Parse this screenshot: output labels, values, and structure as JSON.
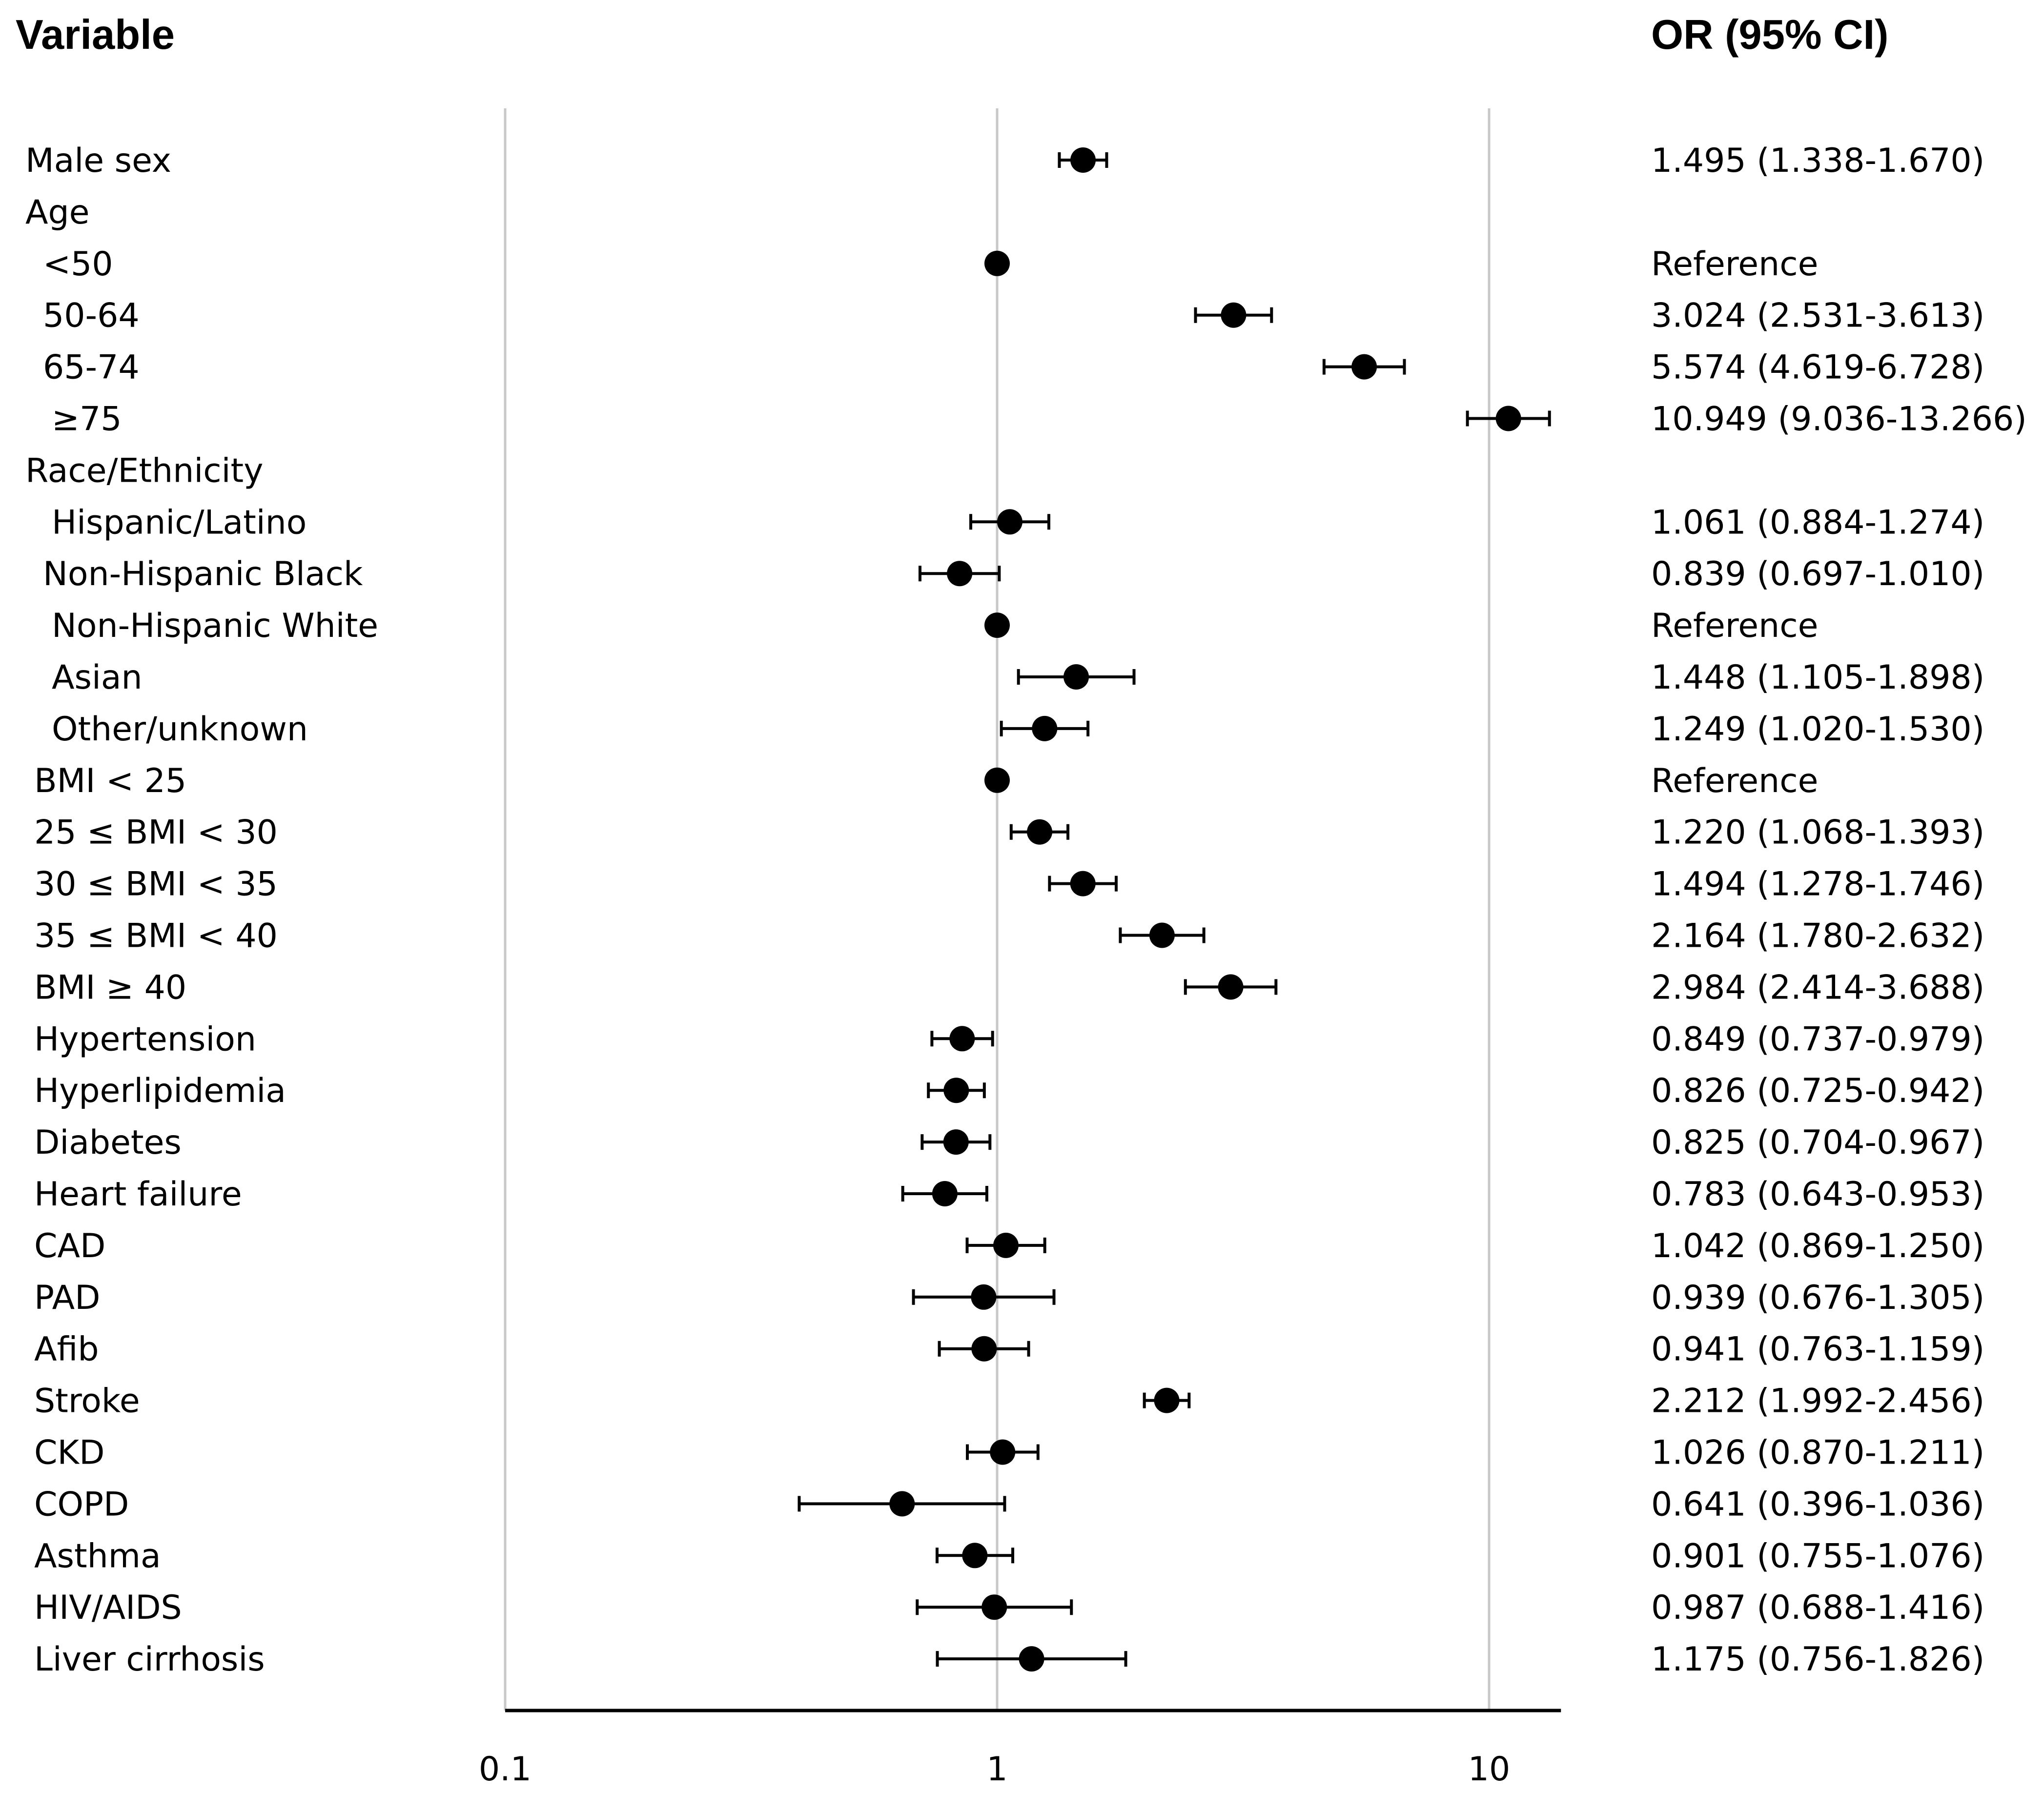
{
  "chart_data": {
    "type": "forest",
    "headers": {
      "left": "Variable",
      "right": "OR (95% CI)"
    },
    "x_axis": {
      "scale": "log",
      "range": [
        0.1,
        14
      ],
      "ticks": [
        0.1,
        1,
        10
      ],
      "tick_labels": [
        "0.1",
        "1",
        "10"
      ],
      "gridlines": [
        0.1,
        1,
        10
      ]
    },
    "rows": [
      {
        "label": "Male sex",
        "indent": 0,
        "or": 1.495,
        "lo": 1.338,
        "hi": 1.67,
        "ci_text": "1.495 (1.338-1.670)"
      },
      {
        "label": "Age",
        "indent": 0,
        "or": null,
        "lo": null,
        "hi": null,
        "ci_text": ""
      },
      {
        "label": "<50",
        "indent": 2,
        "or": 1,
        "lo": null,
        "hi": null,
        "ci_text": "Reference"
      },
      {
        "label": "50-64",
        "indent": 2,
        "or": 3.024,
        "lo": 2.531,
        "hi": 3.613,
        "ci_text": "3.024 (2.531-3.613)"
      },
      {
        "label": "65-74",
        "indent": 2,
        "or": 5.574,
        "lo": 4.619,
        "hi": 6.728,
        "ci_text": "5.574 (4.619-6.728)"
      },
      {
        "label": "≥75",
        "indent": 3,
        "or": 10.949,
        "lo": 9.036,
        "hi": 13.266,
        "ci_text": "10.949 (9.036-13.266)"
      },
      {
        "label": "Race/Ethnicity",
        "indent": 0,
        "or": null,
        "lo": null,
        "hi": null,
        "ci_text": ""
      },
      {
        "label": "Hispanic/Latino",
        "indent": 3,
        "or": 1.061,
        "lo": 0.884,
        "hi": 1.274,
        "ci_text": "1.061 (0.884-1.274)"
      },
      {
        "label": "Non-Hispanic Black",
        "indent": 2,
        "or": 0.839,
        "lo": 0.697,
        "hi": 1.01,
        "ci_text": "0.839 (0.697-1.010)"
      },
      {
        "label": "Non-Hispanic White",
        "indent": 3,
        "or": 1,
        "lo": null,
        "hi": null,
        "ci_text": "Reference"
      },
      {
        "label": "Asian",
        "indent": 3,
        "or": 1.448,
        "lo": 1.105,
        "hi": 1.898,
        "ci_text": "1.448 (1.105-1.898)"
      },
      {
        "label": "Other/unknown",
        "indent": 3,
        "or": 1.249,
        "lo": 1.02,
        "hi": 1.53,
        "ci_text": "1.249 (1.020-1.530)"
      },
      {
        "label": "BMI < 25",
        "indent": 1,
        "or": 1,
        "lo": null,
        "hi": null,
        "ci_text": "Reference"
      },
      {
        "label": "25 ≤ BMI < 30",
        "indent": 1,
        "or": 1.22,
        "lo": 1.068,
        "hi": 1.393,
        "ci_text": "1.220 (1.068-1.393)"
      },
      {
        "label": "30 ≤ BMI < 35",
        "indent": 1,
        "or": 1.494,
        "lo": 1.278,
        "hi": 1.746,
        "ci_text": "1.494 (1.278-1.746)"
      },
      {
        "label": "35 ≤ BMI < 40",
        "indent": 1,
        "or": 2.164,
        "lo": 1.78,
        "hi": 2.632,
        "ci_text": "2.164 (1.780-2.632)"
      },
      {
        "label": "BMI ≥ 40",
        "indent": 1,
        "or": 2.984,
        "lo": 2.414,
        "hi": 3.688,
        "ci_text": "2.984 (2.414-3.688)"
      },
      {
        "label": "Hypertension",
        "indent": 1,
        "or": 0.849,
        "lo": 0.737,
        "hi": 0.979,
        "ci_text": "0.849 (0.737-0.979)"
      },
      {
        "label": "Hyperlipidemia",
        "indent": 1,
        "or": 0.826,
        "lo": 0.725,
        "hi": 0.942,
        "ci_text": "0.826 (0.725-0.942)"
      },
      {
        "label": "Diabetes",
        "indent": 1,
        "or": 0.825,
        "lo": 0.704,
        "hi": 0.967,
        "ci_text": "0.825 (0.704-0.967)"
      },
      {
        "label": "Heart failure",
        "indent": 1,
        "or": 0.783,
        "lo": 0.643,
        "hi": 0.953,
        "ci_text": "0.783 (0.643-0.953)"
      },
      {
        "label": "CAD",
        "indent": 1,
        "or": 1.042,
        "lo": 0.869,
        "hi": 1.25,
        "ci_text": "1.042 (0.869-1.250)"
      },
      {
        "label": "PAD",
        "indent": 1,
        "or": 0.939,
        "lo": 0.676,
        "hi": 1.305,
        "ci_text": "0.939 (0.676-1.305)"
      },
      {
        "label": "Afib",
        "indent": 1,
        "or": 0.941,
        "lo": 0.763,
        "hi": 1.159,
        "ci_text": "0.941 (0.763-1.159)"
      },
      {
        "label": "Stroke",
        "indent": 1,
        "or": 2.212,
        "lo": 1.992,
        "hi": 2.456,
        "ci_text": "2.212 (1.992-2.456)"
      },
      {
        "label": "CKD",
        "indent": 1,
        "or": 1.026,
        "lo": 0.87,
        "hi": 1.211,
        "ci_text": "1.026 (0.870-1.211)"
      },
      {
        "label": "COPD",
        "indent": 1,
        "or": 0.641,
        "lo": 0.396,
        "hi": 1.036,
        "ci_text": "0.641 (0.396-1.036)"
      },
      {
        "label": "Asthma",
        "indent": 1,
        "or": 0.901,
        "lo": 0.755,
        "hi": 1.076,
        "ci_text": "0.901 (0.755-1.076)"
      },
      {
        "label": "HIV/AIDS",
        "indent": 1,
        "or": 0.987,
        "lo": 0.688,
        "hi": 1.416,
        "ci_text": "0.987 (0.688-1.416)"
      },
      {
        "label": "Liver cirrhosis",
        "indent": 1,
        "or": 1.175,
        "lo": 0.756,
        "hi": 1.826,
        "ci_text": "1.175 (0.756-1.826)"
      }
    ],
    "colors": {
      "marker": "#000000",
      "grid": "#c8c8c8",
      "axis": "#000000"
    }
  }
}
